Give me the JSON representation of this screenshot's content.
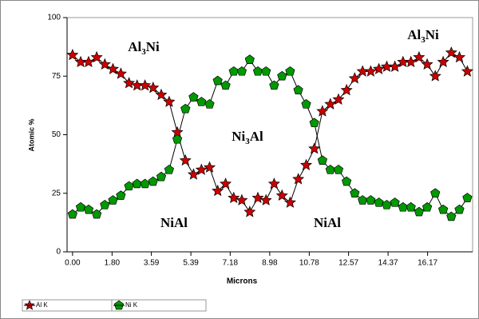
{
  "chart_data": {
    "type": "line",
    "x_label": "Microns",
    "y_label": "Atomic %",
    "x": [
      0,
      0.37,
      0.73,
      1.1,
      1.47,
      1.84,
      2.2,
      2.57,
      2.94,
      3.3,
      3.67,
      4.04,
      4.4,
      4.77,
      5.14,
      5.51,
      5.87,
      6.24,
      6.61,
      6.97,
      7.34,
      7.71,
      8.07,
      8.44,
      8.81,
      9.18,
      9.54,
      9.91,
      10.28,
      10.64,
      11.01,
      11.38,
      11.74,
      12.11,
      12.48,
      12.85,
      13.21,
      13.58,
      13.95,
      14.31,
      14.68,
      15.05,
      15.41,
      15.78,
      16.15,
      16.52,
      16.88,
      17.25,
      17.62,
      17.98
    ],
    "series": [
      {
        "name": "Al K",
        "color": "#cc0000",
        "marker": "star",
        "values": [
          84,
          81,
          81,
          83,
          80,
          78,
          76,
          72,
          71,
          71,
          70,
          67,
          64,
          51,
          39,
          33,
          35,
          36,
          26,
          29,
          23,
          22,
          17,
          23,
          22,
          29,
          24,
          21,
          31,
          37,
          44,
          60,
          63,
          65,
          69,
          74,
          77,
          77,
          78,
          79,
          79,
          81,
          81,
          83,
          80,
          75,
          81,
          85,
          83,
          77
        ]
      },
      {
        "name": "Ni K",
        "color": "#009900",
        "marker": "pentagon",
        "values": [
          16,
          19,
          18,
          16,
          20,
          22,
          24,
          28,
          29,
          29,
          30,
          32,
          35,
          48,
          61,
          66,
          64,
          63,
          73,
          71,
          77,
          77,
          82,
          77,
          77,
          71,
          75,
          77,
          69,
          63,
          55,
          39,
          35,
          35,
          30,
          25,
          22,
          22,
          21,
          20,
          21,
          19,
          19,
          17,
          19,
          25,
          18,
          15,
          18,
          23
        ]
      }
    ],
    "xlim": [
      -0.25,
      18.22
    ],
    "xticks": [
      {
        "value": 0,
        "label": "0.00"
      },
      {
        "value": 1.8,
        "label": "1.80"
      },
      3.59,
      5.39,
      7.18,
      8.98,
      10.78,
      12.57,
      14.37,
      16.17
    ],
    "ylim": [
      0,
      100
    ],
    "yticks": [
      0,
      25,
      50,
      75,
      100
    ],
    "annotations": [
      {
        "parts": [
          "Al",
          "3",
          "Ni"
        ]
      },
      {
        "parts": [
          "Al",
          "3",
          "Ni"
        ]
      },
      {
        "parts": [
          "Ni",
          "3",
          "Al"
        ]
      },
      {
        "parts": [
          "NiAl"
        ]
      },
      {
        "parts": [
          "NiAl"
        ]
      }
    ]
  }
}
